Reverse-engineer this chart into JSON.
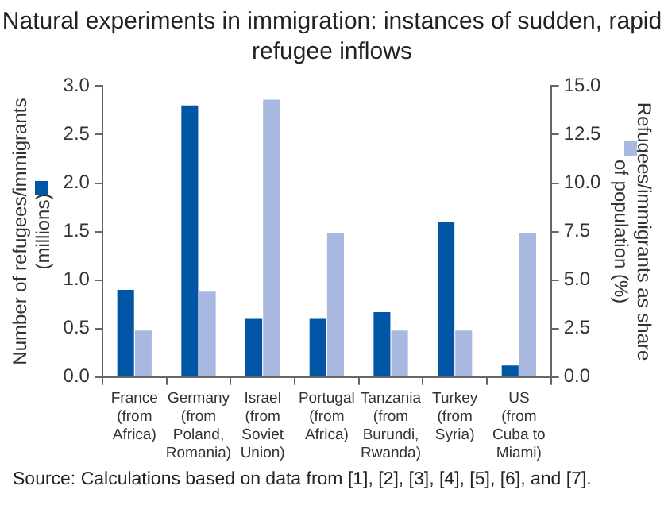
{
  "chart_data": {
    "type": "bar",
    "title": "Natural experiments in immigration: instances of sudden, rapid refugee inflows",
    "categories": [
      "France (from Africa)",
      "Germany (from Poland, Romania)",
      "Israel (from Soviet Union)",
      "Portugal (from Africa)",
      "Tanzania (from Burundi, Rwanda)",
      "Turkey (from Syria)",
      "US (from Cuba to Miami)"
    ],
    "series": [
      {
        "color": "#0055a5",
        "values": [
          0.9,
          2.8,
          0.6,
          0.6,
          0.67,
          1.6,
          0.12
        ]
      },
      {
        "color": "#a9b8e0",
        "axis": "y2",
        "values": [
          2.4,
          4.4,
          14.3,
          7.4,
          2.4,
          2.4,
          7.4
        ]
      }
    ],
    "ylabel": "Number of refugees/immigrants (millions)",
    "y2label": "Refugees/immigrants as share of population (%)",
    "ylim": [
      0,
      3
    ],
    "yticks": [
      {
        "value": 0,
        "label": "0.0"
      },
      {
        "value": 0.5,
        "label": "0.5"
      },
      {
        "value": 1,
        "label": "1.0"
      },
      {
        "value": 1.5,
        "label": "1.5"
      },
      {
        "value": 2,
        "label": "2.0"
      },
      {
        "value": 2.5,
        "label": "2.5"
      },
      {
        "value": 3,
        "label": "3.0"
      }
    ],
    "y2lim": [
      0,
      15
    ],
    "y2ticks": [
      {
        "value": 0,
        "label": "0.0"
      },
      {
        "value": 2.5,
        "label": "2.5"
      },
      {
        "value": 5,
        "label": "5.0"
      },
      {
        "value": 7.5,
        "label": "7.5"
      },
      {
        "value": 10,
        "label": "10.0"
      },
      {
        "value": 12.5,
        "label": "12.5"
      },
      {
        "value": 15,
        "label": "15.0"
      }
    ],
    "grid": false,
    "legend": false,
    "annotations": [
      "Source: Calculations based on data from [1], [2], [3], [4], [5], [6], and [7]."
    ]
  }
}
